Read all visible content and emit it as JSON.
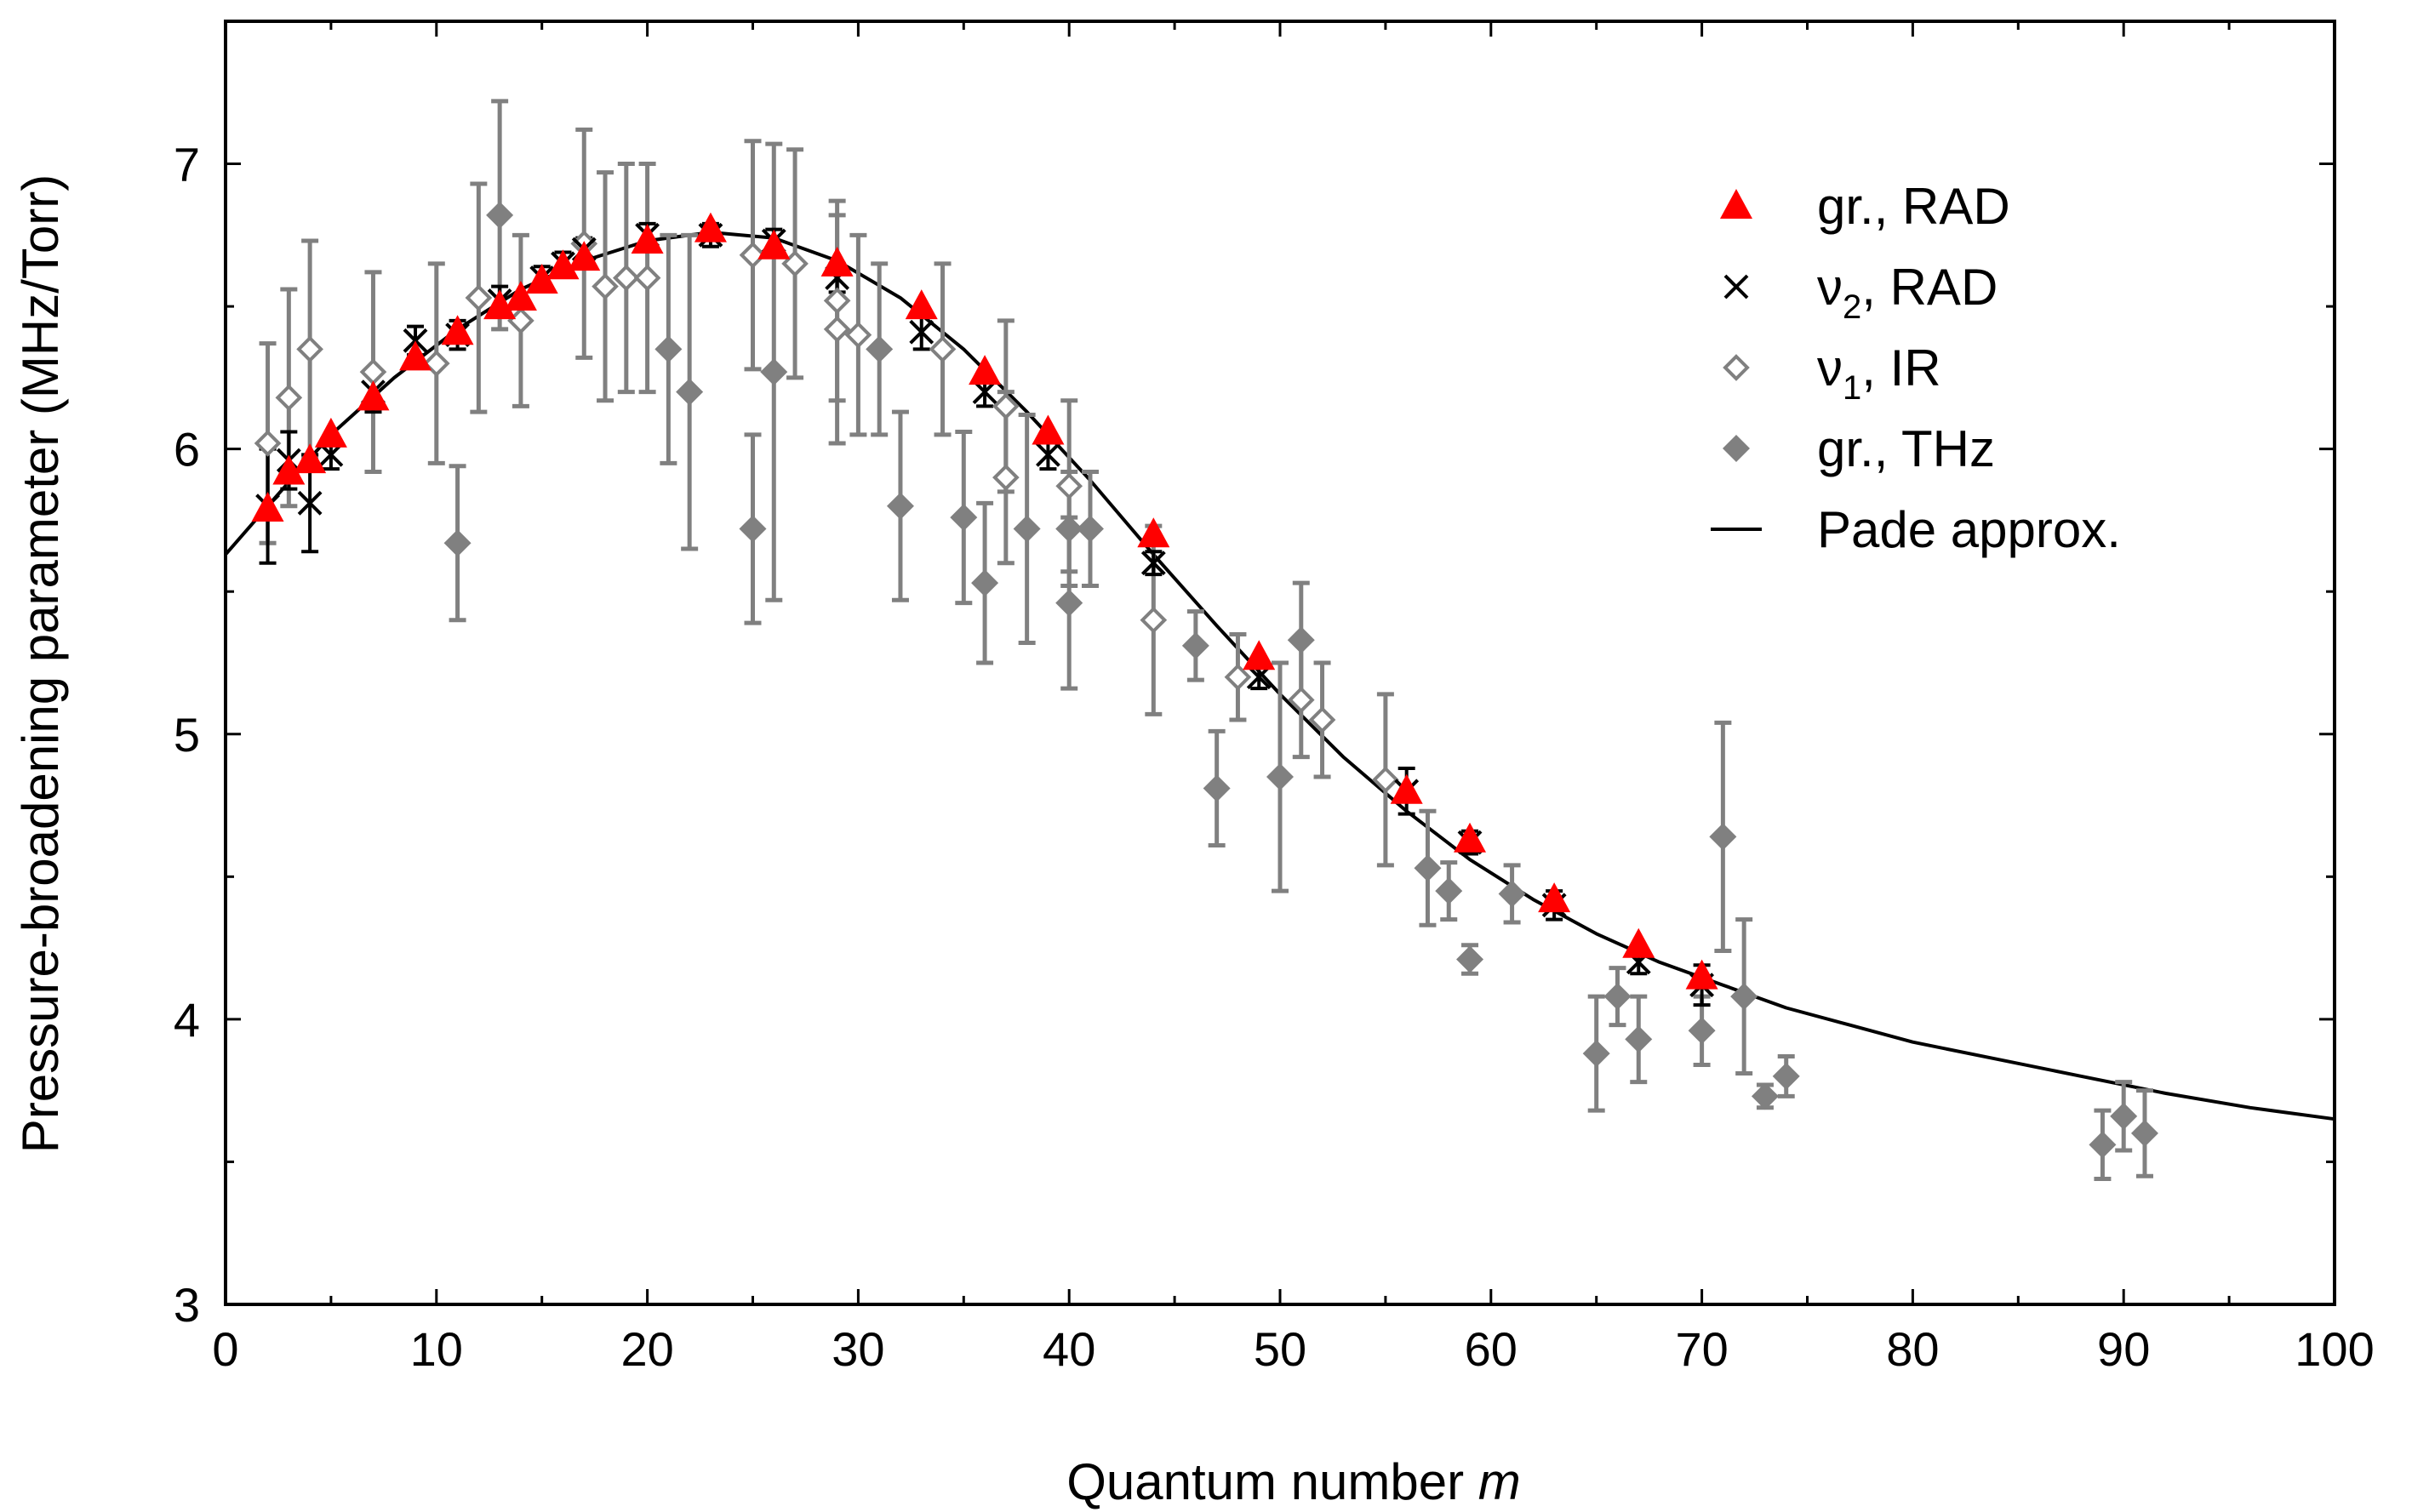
{
  "chart_data": {
    "type": "scatter",
    "xlabel": "Quantum number",
    "xlabel_var": "m",
    "ylabel": "Pressure-broadening parameter  (MHz/Torr)",
    "xlim": [
      0,
      100
    ],
    "ylim": [
      3,
      7.5
    ],
    "xticks": [
      "0",
      "10",
      "20",
      "30",
      "40",
      "50",
      "60",
      "70",
      "80",
      "90",
      "100"
    ],
    "yticks": [
      "3",
      "4",
      "5",
      "6",
      "7"
    ],
    "grid": false,
    "legend_position": "top-right",
    "colors": {
      "gr_rad": "#ff0000",
      "nu2_rad": "#000000",
      "nu1_ir": "#808080",
      "gr_thz": "#808080",
      "pade": "#000000"
    },
    "legend": [
      {
        "key": "gr_rad",
        "marker": "triangle",
        "pre": "gr., RAD",
        "sub": ""
      },
      {
        "key": "nu2_rad",
        "marker": "cross",
        "pre": "ν",
        "sub": "2",
        "post": ",  RAD"
      },
      {
        "key": "nu1_ir",
        "marker": "open-diamond",
        "pre": "ν",
        "sub": "1",
        "post": ",  IR"
      },
      {
        "key": "gr_thz",
        "marker": "filled-diamond",
        "pre": "gr., THz",
        "sub": ""
      },
      {
        "key": "pade",
        "marker": "line",
        "pre": "Pade approx.",
        "sub": ""
      }
    ],
    "series": [
      {
        "key": "gr_thz",
        "marker": "filled-diamond",
        "points": [
          {
            "x": 11,
            "y": 5.67,
            "err": 0.27
          },
          {
            "x": 13,
            "y": 6.82,
            "err": 0.4
          },
          {
            "x": 21,
            "y": 6.35,
            "err": 0.4
          },
          {
            "x": 22,
            "y": 6.2,
            "err": 0.55
          },
          {
            "x": 25,
            "y": 5.72,
            "err": 0.33
          },
          {
            "x": 26,
            "y": 6.27,
            "err": 0.8
          },
          {
            "x": 31,
            "y": 6.35,
            "err": 0.3
          },
          {
            "x": 32,
            "y": 5.8,
            "err": 0.33
          },
          {
            "x": 35,
            "y": 5.76,
            "err": 0.3
          },
          {
            "x": 36,
            "y": 5.53,
            "err": 0.28
          },
          {
            "x": 38,
            "y": 5.72,
            "err": 0.4
          },
          {
            "x": 40,
            "y": 5.72,
            "err": 0.2
          },
          {
            "x": 40,
            "y": 5.46,
            "err": 0.3
          },
          {
            "x": 41,
            "y": 5.72,
            "err": 0.2
          },
          {
            "x": 46,
            "y": 5.31,
            "err": 0.12
          },
          {
            "x": 47,
            "y": 4.81,
            "err": 0.2
          },
          {
            "x": 50,
            "y": 4.85,
            "err": 0.4
          },
          {
            "x": 51,
            "y": 5.33,
            "err": 0.2
          },
          {
            "x": 57,
            "y": 4.53,
            "err": 0.2
          },
          {
            "x": 58,
            "y": 4.45,
            "err": 0.1
          },
          {
            "x": 59,
            "y": 4.21,
            "err": 0.05
          },
          {
            "x": 61,
            "y": 4.44,
            "err": 0.1
          },
          {
            "x": 65,
            "y": 3.88,
            "err": 0.2
          },
          {
            "x": 66,
            "y": 4.08,
            "err": 0.1
          },
          {
            "x": 67,
            "y": 3.93,
            "err": 0.15
          },
          {
            "x": 70,
            "y": 3.96,
            "err": 0.12
          },
          {
            "x": 71,
            "y": 4.64,
            "err": 0.4
          },
          {
            "x": 72,
            "y": 4.08,
            "err": 0.27
          },
          {
            "x": 73,
            "y": 3.73,
            "err": 0.04
          },
          {
            "x": 74,
            "y": 3.8,
            "err": 0.07
          },
          {
            "x": 89,
            "y": 3.56,
            "err": 0.12
          },
          {
            "x": 90,
            "y": 3.66,
            "err": 0.12
          },
          {
            "x": 91,
            "y": 3.6,
            "err": 0.15
          }
        ]
      },
      {
        "key": "nu1_ir",
        "marker": "open-diamond",
        "points": [
          {
            "x": 2,
            "y": 6.02,
            "err": 0.35
          },
          {
            "x": 3,
            "y": 6.18,
            "err": 0.38
          },
          {
            "x": 4,
            "y": 6.35,
            "err": 0.38
          },
          {
            "x": 7,
            "y": 6.27,
            "err": 0.35
          },
          {
            "x": 10,
            "y": 6.3,
            "err": 0.35
          },
          {
            "x": 12,
            "y": 6.53,
            "err": 0.4
          },
          {
            "x": 14,
            "y": 6.45,
            "err": 0.3
          },
          {
            "x": 17,
            "y": 6.72,
            "err": 0.4
          },
          {
            "x": 18,
            "y": 6.57,
            "err": 0.4
          },
          {
            "x": 19,
            "y": 6.6,
            "err": 0.4
          },
          {
            "x": 20,
            "y": 6.6,
            "err": 0.4
          },
          {
            "x": 25,
            "y": 6.68,
            "err": 0.4
          },
          {
            "x": 27,
            "y": 6.65,
            "err": 0.4
          },
          {
            "x": 29,
            "y": 6.42,
            "err": 0.4
          },
          {
            "x": 29,
            "y": 6.52,
            "err": 0.35
          },
          {
            "x": 30,
            "y": 6.4,
            "err": 0.35
          },
          {
            "x": 34,
            "y": 6.35,
            "err": 0.3
          },
          {
            "x": 37,
            "y": 6.15,
            "err": 0.3
          },
          {
            "x": 37,
            "y": 5.9,
            "err": 0.3
          },
          {
            "x": 40,
            "y": 5.87,
            "err": 0.3
          },
          {
            "x": 44,
            "y": 5.4,
            "err": 0.33
          },
          {
            "x": 48,
            "y": 5.2,
            "err": 0.15
          },
          {
            "x": 51,
            "y": 5.12,
            "err": 0.2
          },
          {
            "x": 52,
            "y": 5.05,
            "err": 0.2
          },
          {
            "x": 55,
            "y": 4.84,
            "err": 0.3
          }
        ]
      },
      {
        "key": "nu2_rad",
        "marker": "cross",
        "points": [
          {
            "x": 2,
            "y": 5.8,
            "err": 0.2
          },
          {
            "x": 3,
            "y": 5.96,
            "err": 0.1
          },
          {
            "x": 4,
            "y": 5.81,
            "err": 0.17
          },
          {
            "x": 5,
            "y": 5.98,
            "err": 0.05
          },
          {
            "x": 7,
            "y": 6.2,
            "err": 0.07
          },
          {
            "x": 9,
            "y": 6.38,
            "err": 0.05
          },
          {
            "x": 11,
            "y": 6.4,
            "err": 0.05
          },
          {
            "x": 13,
            "y": 6.52,
            "err": 0.05
          },
          {
            "x": 15,
            "y": 6.6,
            "err": 0.04
          },
          {
            "x": 16,
            "y": 6.65,
            "err": 0.04
          },
          {
            "x": 17,
            "y": 6.7,
            "err": 0.04
          },
          {
            "x": 20,
            "y": 6.75,
            "err": 0.04
          },
          {
            "x": 23,
            "y": 6.75,
            "err": 0.04
          },
          {
            "x": 26,
            "y": 6.73,
            "err": 0.04
          },
          {
            "x": 29,
            "y": 6.6,
            "err": 0.05
          },
          {
            "x": 33,
            "y": 6.41,
            "err": 0.06
          },
          {
            "x": 36,
            "y": 6.2,
            "err": 0.05
          },
          {
            "x": 39,
            "y": 5.98,
            "err": 0.05
          },
          {
            "x": 44,
            "y": 5.6,
            "err": 0.04
          },
          {
            "x": 49,
            "y": 5.2,
            "err": 0.04
          },
          {
            "x": 56,
            "y": 4.8,
            "err": 0.08
          },
          {
            "x": 59,
            "y": 4.62,
            "err": 0.04
          },
          {
            "x": 63,
            "y": 4.4,
            "err": 0.05
          },
          {
            "x": 67,
            "y": 4.2,
            "err": 0.04
          },
          {
            "x": 70,
            "y": 4.12,
            "err": 0.07
          }
        ]
      },
      {
        "key": "gr_rad",
        "marker": "triangle",
        "points": [
          {
            "x": 2,
            "y": 5.79
          },
          {
            "x": 3,
            "y": 5.92
          },
          {
            "x": 4,
            "y": 5.96
          },
          {
            "x": 5,
            "y": 6.05
          },
          {
            "x": 7,
            "y": 6.18
          },
          {
            "x": 9,
            "y": 6.32
          },
          {
            "x": 11,
            "y": 6.41
          },
          {
            "x": 13,
            "y": 6.5
          },
          {
            "x": 14,
            "y": 6.53
          },
          {
            "x": 15,
            "y": 6.59
          },
          {
            "x": 16,
            "y": 6.64
          },
          {
            "x": 17,
            "y": 6.67
          },
          {
            "x": 20,
            "y": 6.73
          },
          {
            "x": 23,
            "y": 6.77
          },
          {
            "x": 26,
            "y": 6.71
          },
          {
            "x": 29,
            "y": 6.65
          },
          {
            "x": 33,
            "y": 6.5
          },
          {
            "x": 36,
            "y": 6.27
          },
          {
            "x": 39,
            "y": 6.06
          },
          {
            "x": 44,
            "y": 5.7
          },
          {
            "x": 49,
            "y": 5.27
          },
          {
            "x": 56,
            "y": 4.8
          },
          {
            "x": 59,
            "y": 4.63
          },
          {
            "x": 63,
            "y": 4.42
          },
          {
            "x": 67,
            "y": 4.26
          },
          {
            "x": 70,
            "y": 4.15
          }
        ]
      },
      {
        "key": "pade",
        "marker": "line",
        "points": [
          {
            "x": 0,
            "y": 5.63
          },
          {
            "x": 2,
            "y": 5.8
          },
          {
            "x": 5,
            "y": 6.05
          },
          {
            "x": 8,
            "y": 6.25
          },
          {
            "x": 11,
            "y": 6.42
          },
          {
            "x": 14,
            "y": 6.56
          },
          {
            "x": 17,
            "y": 6.66
          },
          {
            "x": 20,
            "y": 6.73
          },
          {
            "x": 23,
            "y": 6.76
          },
          {
            "x": 26,
            "y": 6.74
          },
          {
            "x": 29,
            "y": 6.66
          },
          {
            "x": 32,
            "y": 6.53
          },
          {
            "x": 35,
            "y": 6.35
          },
          {
            "x": 38,
            "y": 6.13
          },
          {
            "x": 41,
            "y": 5.89
          },
          {
            "x": 44,
            "y": 5.63
          },
          {
            "x": 47,
            "y": 5.38
          },
          {
            "x": 50,
            "y": 5.14
          },
          {
            "x": 53,
            "y": 4.92
          },
          {
            "x": 56,
            "y": 4.73
          },
          {
            "x": 59,
            "y": 4.56
          },
          {
            "x": 62,
            "y": 4.42
          },
          {
            "x": 65,
            "y": 4.3
          },
          {
            "x": 68,
            "y": 4.2
          },
          {
            "x": 71,
            "y": 4.12
          },
          {
            "x": 74,
            "y": 4.04
          },
          {
            "x": 77,
            "y": 3.98
          },
          {
            "x": 80,
            "y": 3.92
          },
          {
            "x": 84,
            "y": 3.86
          },
          {
            "x": 88,
            "y": 3.8
          },
          {
            "x": 92,
            "y": 3.74
          },
          {
            "x": 96,
            "y": 3.69
          },
          {
            "x": 100,
            "y": 3.65
          }
        ]
      }
    ]
  }
}
